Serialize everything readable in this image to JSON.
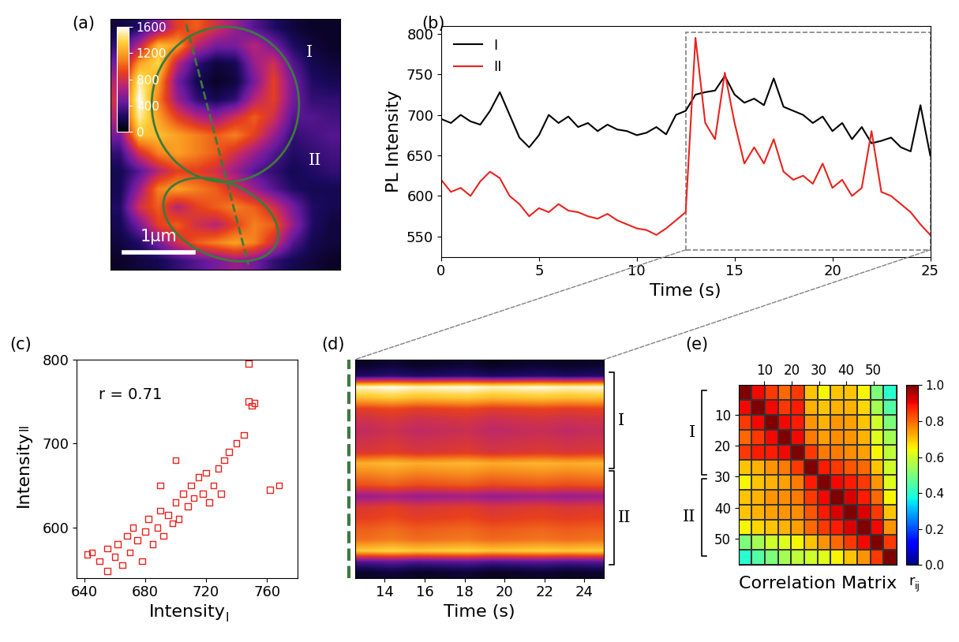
{
  "chart_data": [
    {
      "type": "image",
      "title": "(a)",
      "tick_labels": false,
      "annotations": [
        "I",
        "II"
      ],
      "scale_bar": "1μm",
      "colorbar": {
        "range": [
          0,
          1600
        ],
        "ticks": [
          0,
          400,
          800,
          1200,
          1600
        ]
      },
      "cells": [
        [
          150,
          250,
          500,
          900,
          1000,
          800,
          600,
          400,
          250,
          150,
          100,
          100
        ],
        [
          300,
          700,
          1300,
          1200,
          700,
          500,
          500,
          700,
          500,
          250,
          150,
          100
        ],
        [
          500,
          1200,
          1400,
          700,
          300,
          150,
          200,
          600,
          800,
          400,
          200,
          150
        ],
        [
          700,
          1500,
          1200,
          500,
          200,
          100,
          150,
          500,
          900,
          500,
          250,
          200
        ],
        [
          800,
          1600,
          1100,
          600,
          300,
          200,
          300,
          700,
          900,
          500,
          300,
          300
        ],
        [
          700,
          1500,
          1200,
          900,
          700,
          600,
          800,
          1000,
          800,
          400,
          400,
          350
        ],
        [
          500,
          1300,
          1300,
          1200,
          1100,
          1000,
          1100,
          900,
          600,
          300,
          350,
          400
        ],
        [
          300,
          800,
          1100,
          1200,
          1100,
          1000,
          800,
          600,
          400,
          250,
          300,
          350
        ],
        [
          200,
          400,
          700,
          900,
          900,
          800,
          600,
          400,
          300,
          200,
          250,
          300
        ],
        [
          200,
          600,
          1100,
          1200,
          1100,
          1000,
          800,
          600,
          400,
          250,
          200,
          200
        ],
        [
          250,
          800,
          1000,
          700,
          900,
          1000,
          1100,
          1000,
          800,
          500,
          250,
          200
        ],
        [
          200,
          500,
          900,
          1000,
          800,
          700,
          900,
          1100,
          1000,
          600,
          250,
          150
        ],
        [
          150,
          250,
          500,
          800,
          1000,
          1100,
          1200,
          1100,
          800,
          400,
          200,
          150
        ],
        [
          100,
          150,
          200,
          300,
          400,
          500,
          600,
          500,
          300,
          200,
          150,
          100
        ]
      ]
    },
    {
      "type": "line",
      "title": "(b)",
      "xlabel": "Time (s)",
      "ylabel": "PL Intensity",
      "xlim": [
        0,
        25
      ],
      "xticks": [
        0,
        5,
        10,
        15,
        20,
        25
      ],
      "ylim": [
        525,
        810
      ],
      "yticks": [
        550,
        600,
        650,
        700,
        750,
        800
      ],
      "legend": "upper left",
      "x": [
        0,
        0.5,
        1,
        1.5,
        2,
        2.5,
        3,
        3.5,
        4,
        4.5,
        5,
        5.5,
        6,
        6.5,
        7,
        7.5,
        8,
        8.5,
        9,
        9.5,
        10,
        10.5,
        11,
        11.5,
        12,
        12.5,
        13,
        13.5,
        14,
        14.5,
        15,
        15.5,
        16,
        16.5,
        17,
        17.5,
        18,
        18.5,
        19,
        19.5,
        20,
        20.5,
        21,
        21.5,
        22,
        22.5,
        23,
        23.5,
        24,
        24.5,
        25
      ],
      "series": [
        {
          "name": "I",
          "color": "#000000",
          "values": [
            695,
            690,
            700,
            692,
            688,
            705,
            728,
            700,
            672,
            660,
            675,
            700,
            690,
            698,
            685,
            690,
            680,
            688,
            682,
            680,
            675,
            678,
            685,
            676,
            700,
            705,
            725,
            728,
            730,
            748,
            725,
            715,
            720,
            712,
            745,
            710,
            705,
            700,
            690,
            698,
            680,
            690,
            670,
            685,
            665,
            668,
            672,
            660,
            655,
            712,
            650
          ]
        },
        {
          "name": "II",
          "color": "#e8231e",
          "values": [
            620,
            605,
            610,
            600,
            618,
            630,
            622,
            600,
            590,
            575,
            585,
            580,
            590,
            582,
            580,
            575,
            572,
            578,
            570,
            565,
            560,
            558,
            552,
            560,
            570,
            580,
            795,
            690,
            670,
            752,
            690,
            640,
            660,
            640,
            670,
            630,
            620,
            625,
            615,
            640,
            610,
            620,
            600,
            610,
            680,
            605,
            600,
            590,
            580,
            565,
            552
          ]
        }
      ]
    },
    {
      "type": "scatter",
      "title": "(c)",
      "xlabel": {
        "text": "Intensity",
        "subscript": "I"
      },
      "ylabel": {
        "text": "Intensity",
        "subscript": "II"
      },
      "annotation": "r = 0.71",
      "color": "#e8231e",
      "marker": "square",
      "xlim": [
        635,
        780
      ],
      "xticks": [
        640,
        680,
        720,
        760
      ],
      "ylim": [
        540,
        800
      ],
      "yticks": [
        600,
        700,
        800
      ],
      "x": [
        645,
        650,
        655,
        660,
        662,
        665,
        668,
        670,
        672,
        675,
        678,
        680,
        682,
        685,
        688,
        690,
        692,
        695,
        698,
        700,
        702,
        705,
        708,
        710,
        712,
        715,
        718,
        720,
        722,
        725,
        728,
        730,
        732,
        735,
        740,
        745,
        748,
        750,
        752,
        748,
        762,
        768,
        655,
        642,
        700,
        690
      ],
      "values": [
        570,
        560,
        575,
        565,
        580,
        555,
        590,
        570,
        600,
        585,
        560,
        595,
        610,
        580,
        600,
        620,
        590,
        615,
        605,
        630,
        610,
        640,
        625,
        650,
        635,
        660,
        640,
        665,
        630,
        650,
        670,
        640,
        680,
        690,
        700,
        710,
        750,
        745,
        748,
        795,
        645,
        650,
        548,
        568,
        680,
        650
      ]
    },
    {
      "type": "heatmap",
      "title": "(d)",
      "xlabel": "Time (s)",
      "tick_labels": "x",
      "xlim": [
        12.5,
        25
      ],
      "xticks": [
        14,
        16,
        18,
        20,
        22,
        24
      ],
      "groups": [
        "I",
        "II"
      ],
      "cells": [
        [
          100,
          140,
          90,
          110,
          130,
          80,
          100,
          120,
          90,
          110
        ],
        [
          250,
          290,
          240,
          260,
          280,
          230,
          250,
          270,
          240,
          260
        ],
        [
          1550,
          1590,
          1540,
          1560,
          1580,
          1530,
          1550,
          1570,
          1540,
          1560
        ],
        [
          1300,
          1340,
          1290,
          1310,
          1330,
          1280,
          1300,
          1320,
          1290,
          1310
        ],
        [
          900,
          940,
          890,
          910,
          930,
          880,
          900,
          920,
          890,
          910
        ],
        [
          800,
          840,
          790,
          810,
          830,
          780,
          800,
          820,
          790,
          810
        ],
        [
          750,
          790,
          740,
          760,
          780,
          730,
          750,
          770,
          740,
          760
        ],
        [
          800,
          840,
          790,
          810,
          830,
          780,
          800,
          820,
          790,
          810
        ],
        [
          850,
          890,
          840,
          860,
          880,
          830,
          850,
          870,
          840,
          860
        ],
        [
          1250,
          1290,
          1240,
          1260,
          1280,
          1230,
          1250,
          1270,
          1240,
          1260
        ],
        [
          1100,
          1140,
          1090,
          1110,
          1130,
          1080,
          1100,
          1120,
          1090,
          1110
        ],
        [
          950,
          990,
          940,
          960,
          980,
          930,
          950,
          970,
          940,
          960
        ],
        [
          600,
          640,
          590,
          610,
          630,
          580,
          600,
          620,
          590,
          610
        ],
        [
          850,
          890,
          840,
          860,
          880,
          830,
          850,
          870,
          840,
          860
        ],
        [
          900,
          940,
          890,
          910,
          930,
          880,
          900,
          920,
          890,
          910
        ],
        [
          1000,
          1040,
          990,
          1010,
          1030,
          980,
          1000,
          1020,
          990,
          1010
        ],
        [
          1050,
          1090,
          1040,
          1060,
          1080,
          1030,
          1050,
          1070,
          1040,
          1060
        ],
        [
          1350,
          1390,
          1340,
          1360,
          1380,
          1330,
          1350,
          1370,
          1340,
          1360
        ],
        [
          400,
          440,
          390,
          410,
          430,
          380,
          400,
          420,
          390,
          410
        ],
        [
          100,
          140,
          90,
          110,
          130,
          80,
          100,
          120,
          90,
          110
        ]
      ]
    },
    {
      "type": "heatmap",
      "title": "(e)",
      "xlabel": "Correlation Matrix",
      "xlim": [
        0.5,
        58.5
      ],
      "xticks": [
        10,
        20,
        30,
        40,
        50
      ],
      "ylim": [
        58.5,
        0.5
      ],
      "yticks": [
        10,
        20,
        30,
        40,
        50
      ],
      "groups": [
        "I",
        "II"
      ],
      "colorbar": {
        "range": [
          0,
          1
        ],
        "label": {
          "text": "r",
          "subscript": "ij"
        },
        "ticks": [
          {
            "value": 0,
            "label": "0.0"
          },
          {
            "value": 0.2,
            "label": "0.2"
          },
          {
            "value": 0.4,
            "label": "0.4"
          },
          {
            "value": 0.6,
            "label": "0.6"
          },
          {
            "value": 0.8,
            "label": "0.8"
          },
          {
            "value": 1,
            "label": "1.0"
          }
        ]
      },
      "cells": [
        [
          1.0,
          0.9,
          0.85,
          0.8,
          0.85,
          0.7,
          0.65,
          0.7,
          0.7,
          0.65,
          0.5,
          0.4
        ],
        [
          0.9,
          1.0,
          0.9,
          0.85,
          0.88,
          0.72,
          0.7,
          0.72,
          0.72,
          0.68,
          0.55,
          0.45
        ],
        [
          0.85,
          0.9,
          1.0,
          0.9,
          0.88,
          0.75,
          0.72,
          0.75,
          0.74,
          0.7,
          0.6,
          0.5
        ],
        [
          0.8,
          0.85,
          0.9,
          1.0,
          0.9,
          0.78,
          0.74,
          0.76,
          0.75,
          0.72,
          0.62,
          0.55
        ],
        [
          0.85,
          0.88,
          0.88,
          0.9,
          1.0,
          0.85,
          0.78,
          0.78,
          0.76,
          0.74,
          0.65,
          0.58
        ],
        [
          0.7,
          0.72,
          0.75,
          0.78,
          0.85,
          1.0,
          0.88,
          0.85,
          0.82,
          0.8,
          0.7,
          0.6
        ],
        [
          0.65,
          0.7,
          0.72,
          0.74,
          0.78,
          0.88,
          1.0,
          0.9,
          0.88,
          0.85,
          0.75,
          0.62
        ],
        [
          0.7,
          0.72,
          0.75,
          0.76,
          0.78,
          0.85,
          0.9,
          1.0,
          0.92,
          0.88,
          0.8,
          0.65
        ],
        [
          0.7,
          0.72,
          0.74,
          0.75,
          0.76,
          0.82,
          0.88,
          0.92,
          1.0,
          0.92,
          0.85,
          0.7
        ],
        [
          0.65,
          0.68,
          0.7,
          0.72,
          0.74,
          0.8,
          0.85,
          0.88,
          0.92,
          1.0,
          0.9,
          0.75
        ],
        [
          0.5,
          0.55,
          0.6,
          0.62,
          0.65,
          0.7,
          0.75,
          0.8,
          0.85,
          0.9,
          1.0,
          0.85
        ],
        [
          0.4,
          0.45,
          0.5,
          0.55,
          0.58,
          0.6,
          0.62,
          0.65,
          0.7,
          0.75,
          0.85,
          1.0
        ]
      ]
    }
  ]
}
